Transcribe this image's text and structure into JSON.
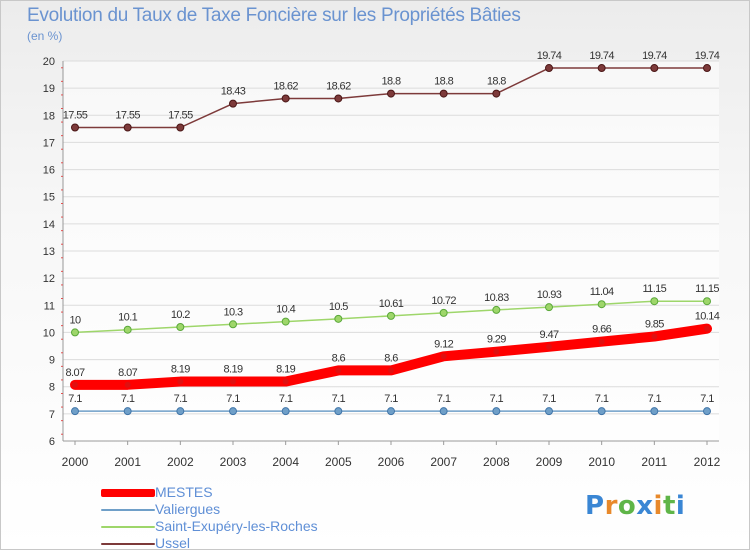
{
  "title": "Evolution du Taux de Taxe Foncière sur les Propriétés Bâties",
  "subtitle": "(en %)",
  "logo": {
    "text": "Proxiti",
    "letters": [
      {
        "ch": "P",
        "color": "#3a86d4"
      },
      {
        "ch": "r",
        "color": "#e8892b"
      },
      {
        "ch": "o",
        "color": "#5fb548"
      },
      {
        "ch": "x",
        "color": "#3a86d4"
      },
      {
        "ch": "i",
        "color": "#e8892b"
      },
      {
        "ch": "t",
        "color": "#5fb548"
      },
      {
        "ch": "i",
        "color": "#3a86d4"
      }
    ]
  },
  "chart_data": {
    "type": "line",
    "title": "Evolution du Taux de Taxe Foncière sur les Propriétés Bâties",
    "ylabel": "(en %)",
    "x": [
      "2000",
      "2001",
      "2002",
      "2003",
      "2004",
      "2005",
      "2006",
      "2007",
      "2008",
      "2009",
      "2010",
      "2011",
      "2012"
    ],
    "ylim": [
      6,
      20
    ],
    "yticks": [
      "6",
      "7",
      "8",
      "9",
      "10",
      "11",
      "12",
      "13",
      "14",
      "15",
      "16",
      "17",
      "18",
      "19",
      "20"
    ],
    "grid": "horizontal",
    "legend_position": "bottom-left",
    "series": [
      {
        "name": "MESTES",
        "color": "#ff0000",
        "values": [
          8.07,
          8.07,
          8.19,
          8.19,
          8.19,
          8.6,
          8.6,
          9.12,
          9.29,
          9.47,
          9.66,
          9.85,
          10.14
        ],
        "labels": [
          "8.07",
          "8.07",
          "8.19",
          "8.19",
          "8.19",
          "8.6",
          "8.6",
          "9.12",
          "9.29",
          "9.47",
          "9.66",
          "9.85",
          "10.14"
        ]
      },
      {
        "name": "Valiergues",
        "color": "#6f9fc8",
        "values": [
          7.1,
          7.1,
          7.1,
          7.1,
          7.1,
          7.1,
          7.1,
          7.1,
          7.1,
          7.1,
          7.1,
          7.1,
          7.1
        ],
        "labels": [
          "7.1",
          "7.1",
          "7.1",
          "7.1",
          "7.1",
          "7.1",
          "7.1",
          "7.1",
          "7.1",
          "7.1",
          "7.1",
          "7.1",
          "7.1"
        ]
      },
      {
        "name": "Saint-Exupéry-les-Roches",
        "color": "#9ed66a",
        "values": [
          10,
          10.1,
          10.2,
          10.3,
          10.4,
          10.5,
          10.61,
          10.72,
          10.83,
          10.93,
          11.04,
          11.15,
          11.15
        ],
        "labels": [
          "10",
          "10.1",
          "10.2",
          "10.3",
          "10.4",
          "10.5",
          "10.61",
          "10.72",
          "10.83",
          "10.93",
          "11.04",
          "11.15",
          "11.15"
        ]
      },
      {
        "name": "Ussel",
        "color": "#7d3a3a",
        "values": [
          17.55,
          17.55,
          17.55,
          18.43,
          18.62,
          18.62,
          18.8,
          18.8,
          18.8,
          19.74,
          19.74,
          19.74,
          19.74
        ],
        "labels": [
          "17.55",
          "17.55",
          "17.55",
          "18.43",
          "18.62",
          "18.62",
          "18.8",
          "18.8",
          "18.8",
          "19.74",
          "19.74",
          "19.74",
          "19.74"
        ]
      }
    ]
  }
}
